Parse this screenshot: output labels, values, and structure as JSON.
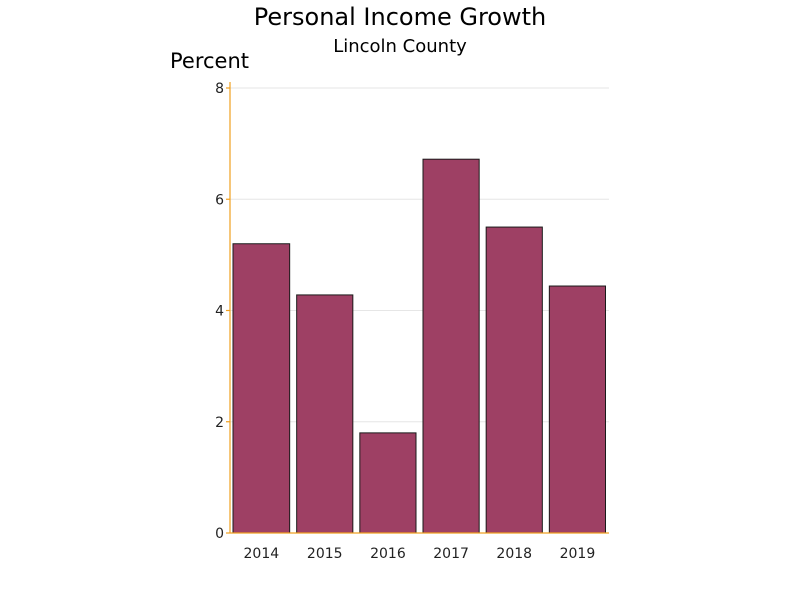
{
  "chart_data": {
    "type": "bar",
    "title": "Personal Income Growth",
    "subtitle": "Lincoln County",
    "ylabel": "Percent",
    "xlabel": "",
    "categories": [
      "2014",
      "2015",
      "2016",
      "2017",
      "2018",
      "2019"
    ],
    "values": [
      5.2,
      4.28,
      1.8,
      6.72,
      5.5,
      4.44
    ],
    "ylim": [
      0,
      8
    ],
    "yticks": [
      0,
      2,
      4,
      6,
      8
    ],
    "grid": true,
    "legend": "none",
    "colors": {
      "bar": "#9e4064",
      "bar_outline": "#1a1a1a",
      "axis": "#f0a020",
      "grid": "#e6e6e6"
    }
  }
}
